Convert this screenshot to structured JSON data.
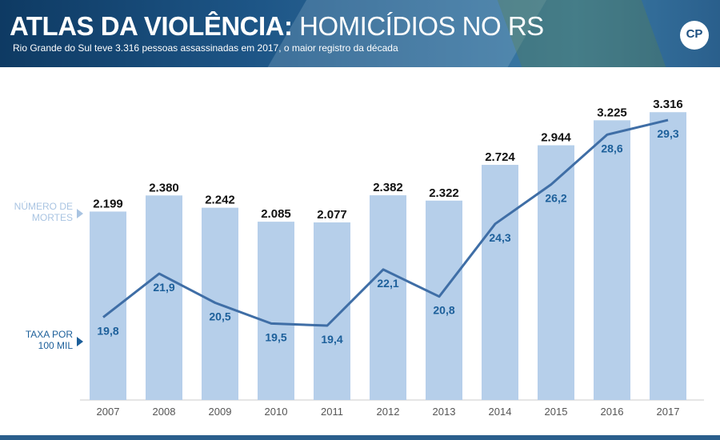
{
  "header": {
    "title_bold": "ATLAS DA VIOLÊNCIA:",
    "title_light": "HOMICÍDIOS NO RS",
    "subtitle": "Rio Grande do Sul teve 3.316 pessoas assassinadas em 2017, o maior registro da década",
    "logo_text": "CP"
  },
  "legend": {
    "deaths_line1": "NÚMERO DE",
    "deaths_line2": "MORTES",
    "rate_line1": "TAXA POR",
    "rate_line2": "100 MIL"
  },
  "colors": {
    "bar": "#b6cfea",
    "line": "#3f6ea6",
    "rate_text": "#1c5f9a",
    "deaths_legend": "#a9c4e2"
  },
  "chart_data": {
    "type": "bar",
    "categories": [
      "2007",
      "2008",
      "2009",
      "2010",
      "2011",
      "2012",
      "2013",
      "2014",
      "2015",
      "2016",
      "2017"
    ],
    "series": [
      {
        "name": "NÚMERO DE MORTES",
        "type": "bar",
        "values": [
          2199,
          2380,
          2242,
          2085,
          2077,
          2382,
          2322,
          2724,
          2944,
          3225,
          3316
        ],
        "labels": [
          "2.199",
          "2.380",
          "2.242",
          "2.085",
          "2.077",
          "2.382",
          "2.322",
          "2.724",
          "2.944",
          "3.225",
          "3.316"
        ]
      },
      {
        "name": "TAXA POR 100 MIL",
        "type": "line",
        "values": [
          19.8,
          21.9,
          20.5,
          19.5,
          19.4,
          22.1,
          20.8,
          24.3,
          26.2,
          28.6,
          29.3
        ],
        "labels": [
          "19,8",
          "21,9",
          "20,5",
          "19,5",
          "19,4",
          "22,1",
          "20,8",
          "24,3",
          "26,2",
          "28,6",
          "29,3"
        ]
      }
    ],
    "title": "",
    "xlabel": "",
    "ylabel": "",
    "grid": false,
    "legend": "left"
  }
}
